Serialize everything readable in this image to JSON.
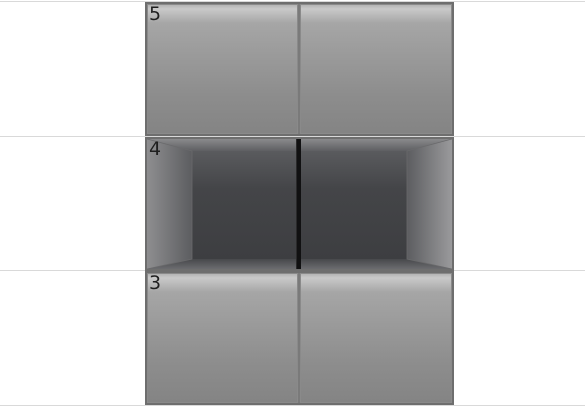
{
  "shelves": [
    {
      "number": "5",
      "state": "closed"
    },
    {
      "number": "4",
      "state": "open"
    },
    {
      "number": "3",
      "state": "closed"
    }
  ]
}
